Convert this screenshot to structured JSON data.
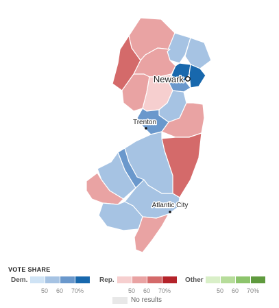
{
  "colors": {
    "dem": [
      "#cfe3f5",
      "#a6c3e3",
      "#6a98cc",
      "#1868ad"
    ],
    "rep": [
      "#f6cfcf",
      "#e9a3a3",
      "#d46a6a",
      "#b4232a"
    ],
    "other": [
      "#d9efc8",
      "#b6dc9a",
      "#8dc46c",
      "#5f9a3e"
    ],
    "no_results": "#e8e8e8"
  },
  "cities": [
    {
      "name": "Newark"
    },
    {
      "name": "Trenton"
    },
    {
      "name": "Atlantic City"
    }
  ],
  "legend": {
    "title": "VOTE SHARE",
    "dem_label": "Dem.",
    "rep_label": "Rep.",
    "other_label": "Other",
    "ticks": [
      "50",
      "60",
      "70%"
    ],
    "no_results": "No results"
  }
}
